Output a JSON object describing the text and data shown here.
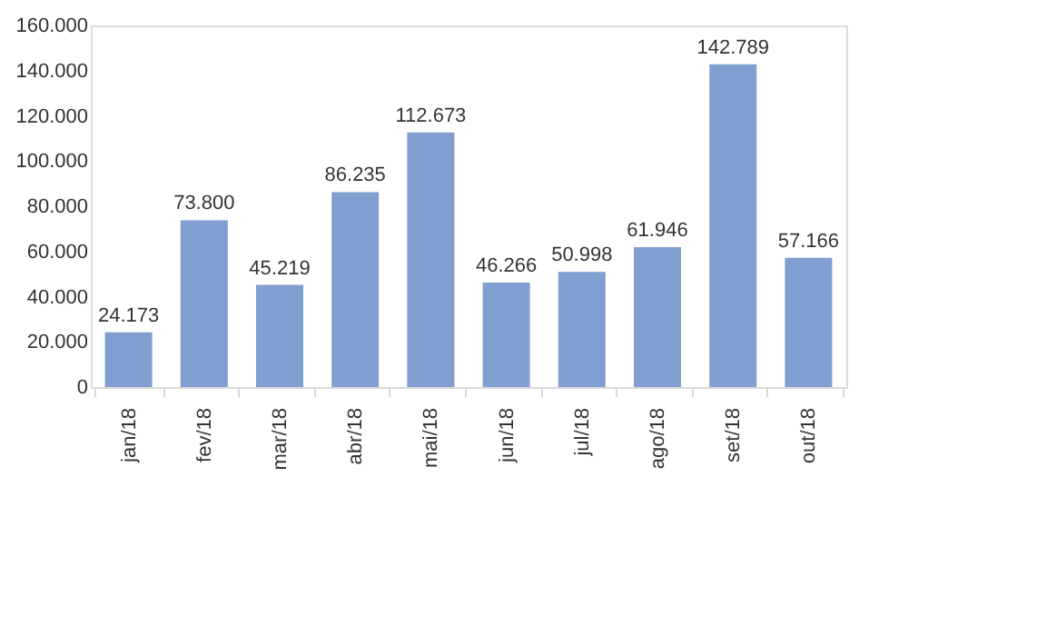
{
  "chart_data": {
    "type": "bar",
    "categories": [
      "jan/18",
      "fev/18",
      "mar/18",
      "abr/18",
      "mai/18",
      "jun/18",
      "jul/18",
      "ago/18",
      "set/18",
      "out/18"
    ],
    "values": [
      24173,
      73800,
      45219,
      86235,
      112673,
      46266,
      50998,
      61946,
      142789,
      57166
    ],
    "value_labels": [
      "24.173",
      "73.800",
      "45.219",
      "86.235",
      "112.673",
      "46.266",
      "50.998",
      "61.946",
      "142.789",
      "57.166"
    ],
    "color": "#809ecf",
    "ylim": [
      0,
      160000
    ],
    "yticks": [
      {
        "value": 0,
        "label": "0"
      },
      {
        "value": 20000,
        "label": "20.000"
      },
      {
        "value": 40000,
        "label": "40.000"
      },
      {
        "value": 60000,
        "label": "60.000"
      },
      {
        "value": 80000,
        "label": "80.000"
      },
      {
        "value": 100000,
        "label": "100.000"
      },
      {
        "value": 120000,
        "label": "120.000"
      },
      {
        "value": 140000,
        "label": "140.000"
      },
      {
        "value": 160000,
        "label": "160.000"
      }
    ],
    "grid": false
  }
}
